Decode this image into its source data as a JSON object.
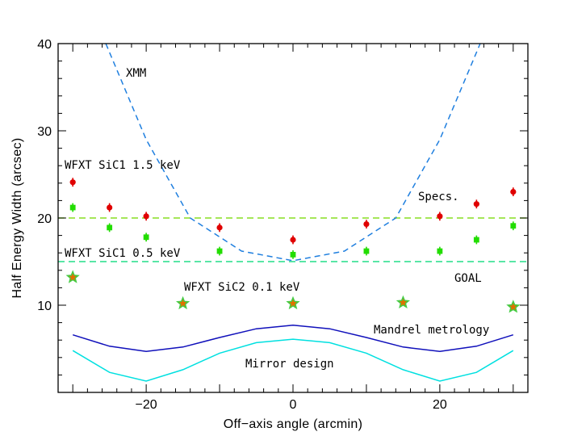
{
  "chart_data": {
    "type": "scatter",
    "xlabel": "Off−axis angle (arcmin)",
    "ylabel": "Half Energy Width (arcsec)",
    "xlim": [
      -32,
      32
    ],
    "ylim": [
      0,
      40
    ],
    "x_ticks": [
      -20,
      0,
      20
    ],
    "y_ticks": [
      10,
      20,
      30,
      40
    ],
    "x_tick_labels": [
      "−20",
      "0",
      "20"
    ],
    "y_tick_labels": [
      "10",
      "20",
      "30",
      "40"
    ],
    "grid": false,
    "series": [
      {
        "name": "WFXT SiC1 1.5 keV",
        "kind": "points_with_error",
        "color": "#e00000",
        "x": [
          -30,
          -25,
          -20,
          -10,
          0,
          10,
          20,
          25,
          30
        ],
        "y": [
          24.1,
          21.2,
          20.2,
          18.9,
          17.5,
          19.3,
          20.2,
          21.6,
          23.0
        ],
        "err": [
          0.5,
          0.5,
          0.5,
          0.5,
          0.5,
          0.5,
          0.5,
          0.5,
          0.5
        ]
      },
      {
        "name": "WFXT SiC1 0.5 keV",
        "kind": "squares_with_error",
        "color": "#22dd00",
        "x": [
          -30,
          -25,
          -20,
          -10,
          0,
          10,
          20,
          25,
          30
        ],
        "y": [
          21.2,
          18.9,
          17.8,
          16.2,
          15.8,
          16.2,
          16.2,
          17.5,
          19.1
        ],
        "err": [
          0.5,
          0.5,
          0.5,
          0.5,
          0.5,
          0.5,
          0.5,
          0.5,
          0.5
        ]
      },
      {
        "name": "WFXT SiC2 0.1 keV",
        "kind": "stars",
        "color": "#44cc44",
        "inner_color": "#e07000",
        "x": [
          -30,
          -15,
          0,
          15,
          30
        ],
        "y": [
          13.2,
          10.2,
          10.2,
          10.3,
          9.8
        ]
      },
      {
        "name": "XMM",
        "kind": "dashed_line",
        "color": "#1f7fdf",
        "x": [
          -25.5,
          -20,
          -14,
          -7,
          0,
          7,
          14,
          20,
          25.5
        ],
        "y": [
          40,
          29,
          20,
          16.2,
          15.1,
          16.2,
          20,
          29,
          40
        ]
      },
      {
        "name": "Mandrel metrology",
        "kind": "line",
        "color": "#1010bb",
        "x": [
          -30,
          -25,
          -20,
          -15,
          -10,
          -5,
          0,
          5,
          10,
          15,
          20,
          25,
          30
        ],
        "y": [
          6.6,
          5.3,
          4.7,
          5.2,
          6.3,
          7.3,
          7.7,
          7.3,
          6.3,
          5.2,
          4.7,
          5.3,
          6.6
        ]
      },
      {
        "name": "Mirror design",
        "kind": "line",
        "color": "#00e0e0",
        "x": [
          -30,
          -25,
          -20,
          -15,
          -10,
          -5,
          0,
          5,
          10,
          15,
          20,
          25,
          30
        ],
        "y": [
          4.8,
          2.3,
          1.3,
          2.6,
          4.5,
          5.7,
          6.1,
          5.7,
          4.5,
          2.6,
          1.3,
          2.3,
          4.8
        ]
      }
    ],
    "reference_lines": [
      {
        "label": "Specs.",
        "y": 20,
        "color": "#88dd22"
      },
      {
        "label": "GOAL",
        "y": 15,
        "color": "#22dd88"
      }
    ],
    "annotations": [
      "XMM",
      "WFXT SiC1 1.5 keV",
      "WFXT SiC1 0.5 keV",
      "WFXT SiC2 0.1 keV",
      "Specs.",
      "GOAL",
      "Mandrel metrology",
      "Mirror design"
    ]
  }
}
